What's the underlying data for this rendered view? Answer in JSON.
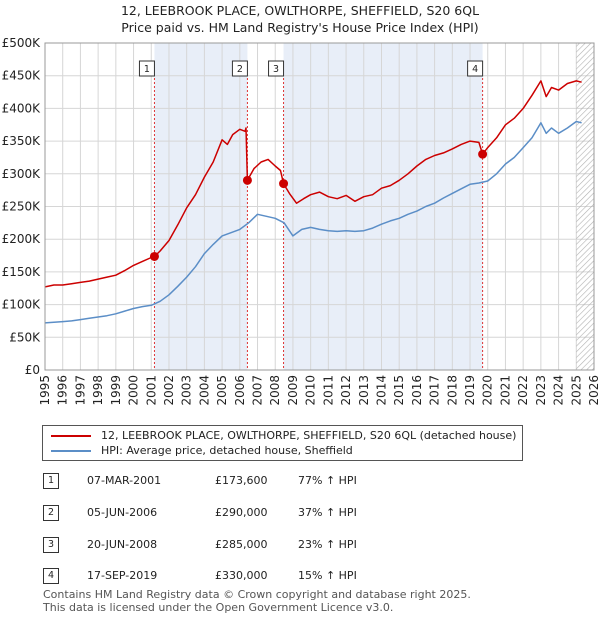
{
  "title_line1": "12, LEEBROOK PLACE, OWLTHORPE, SHEFFIELD, S20 6QL",
  "title_line2": "Price paid vs. HM Land Registry's House Price Index (HPI)",
  "colors": {
    "price_line": "#cc0000",
    "hpi_line": "#5b8ec7",
    "shade": "#e8eef8",
    "grid": "#d6d6d6",
    "marker_dash": "#dd3333",
    "hatch": "#b0b0b0"
  },
  "chart_data": {
    "type": "line",
    "title": "12, LEEBROOK PLACE, OWLTHORPE, SHEFFIELD, S20 6QL — Price paid vs. HM Land Registry's House Price Index (HPI)",
    "xlim": [
      1995,
      2026
    ],
    "ylim": [
      0,
      500000
    ],
    "y_ticks": [
      0,
      50000,
      100000,
      150000,
      200000,
      250000,
      300000,
      350000,
      400000,
      450000,
      500000
    ],
    "y_tick_labels": [
      "£0",
      "£50K",
      "£100K",
      "£150K",
      "£200K",
      "£250K",
      "£300K",
      "£350K",
      "£400K",
      "£450K",
      "£500K"
    ],
    "x_ticks": [
      1995,
      1996,
      1997,
      1998,
      1999,
      2000,
      2001,
      2002,
      2003,
      2004,
      2005,
      2006,
      2007,
      2008,
      2009,
      2010,
      2011,
      2012,
      2013,
      2014,
      2015,
      2016,
      2017,
      2018,
      2019,
      2020,
      2021,
      2022,
      2023,
      2024,
      2025,
      2026
    ],
    "x_tick_labels": [
      "1995",
      "1996",
      "1997",
      "1998",
      "1999",
      "2000",
      "2001",
      "2002",
      "2003",
      "2004",
      "2005",
      "2006",
      "2007",
      "2008",
      "2009",
      "2010",
      "2011",
      "2012",
      "2013",
      "2014",
      "2015",
      "2016",
      "2017",
      "2018",
      "2019",
      "2020",
      "2021",
      "2022",
      "2023",
      "2024",
      "2025",
      "2026"
    ],
    "grid": true,
    "shaded_spans": [
      [
        2001.18,
        2006.43
      ],
      [
        2008.47,
        2019.71
      ]
    ],
    "hatched_from": 2025.0,
    "series": [
      {
        "name": "12, LEEBROOK PLACE, OWLTHORPE, SHEFFIELD, S20 6QL (detached house)",
        "color": "#cc0000",
        "x": [
          1995.0,
          1995.5,
          1996.0,
          1996.5,
          1997.0,
          1997.5,
          1998.0,
          1998.5,
          1999.0,
          1999.5,
          2000.0,
          2000.5,
          2001.0,
          2001.18,
          2001.5,
          2002.0,
          2002.5,
          2003.0,
          2003.5,
          2004.0,
          2004.5,
          2005.0,
          2005.3,
          2005.6,
          2006.0,
          2006.3,
          2006.35,
          2006.43,
          2006.8,
          2007.2,
          2007.6,
          2008.0,
          2008.3,
          2008.47,
          2008.8,
          2009.2,
          2009.6,
          2010.0,
          2010.5,
          2011.0,
          2011.5,
          2012.0,
          2012.5,
          2013.0,
          2013.5,
          2014.0,
          2014.5,
          2015.0,
          2015.5,
          2016.0,
          2016.5,
          2017.0,
          2017.5,
          2018.0,
          2018.5,
          2019.0,
          2019.5,
          2019.71,
          2020.0,
          2020.5,
          2021.0,
          2021.5,
          2022.0,
          2022.5,
          2023.0,
          2023.3,
          2023.6,
          2024.0,
          2024.5,
          2025.0,
          2025.3
        ],
        "values": [
          127000,
          130000,
          130000,
          132000,
          134000,
          136000,
          139000,
          142000,
          145000,
          152000,
          160000,
          166000,
          172000,
          173600,
          182000,
          198000,
          222000,
          248000,
          268000,
          295000,
          318000,
          352000,
          345000,
          360000,
          368000,
          365000,
          370000,
          290000,
          308000,
          318000,
          322000,
          312000,
          305000,
          285000,
          270000,
          255000,
          262000,
          268000,
          272000,
          265000,
          262000,
          267000,
          258000,
          265000,
          268000,
          278000,
          282000,
          290000,
          300000,
          312000,
          322000,
          328000,
          332000,
          338000,
          345000,
          350000,
          348000,
          330000,
          340000,
          355000,
          375000,
          385000,
          400000,
          420000,
          442000,
          418000,
          432000,
          428000,
          438000,
          442000,
          440000
        ]
      },
      {
        "name": "HPI: Average price, detached house, Sheffield",
        "color": "#5b8ec7",
        "x": [
          1995.0,
          1995.5,
          1996.0,
          1996.5,
          1997.0,
          1997.5,
          1998.0,
          1998.5,
          1999.0,
          1999.5,
          2000.0,
          2000.5,
          2001.0,
          2001.5,
          2002.0,
          2002.5,
          2003.0,
          2003.5,
          2004.0,
          2004.5,
          2005.0,
          2005.5,
          2006.0,
          2006.5,
          2007.0,
          2007.5,
          2008.0,
          2008.5,
          2009.0,
          2009.5,
          2010.0,
          2010.5,
          2011.0,
          2011.5,
          2012.0,
          2012.5,
          2013.0,
          2013.5,
          2014.0,
          2014.5,
          2015.0,
          2015.5,
          2016.0,
          2016.5,
          2017.0,
          2017.5,
          2018.0,
          2018.5,
          2019.0,
          2019.5,
          2020.0,
          2020.5,
          2021.0,
          2021.5,
          2022.0,
          2022.5,
          2023.0,
          2023.3,
          2023.6,
          2024.0,
          2024.5,
          2025.0,
          2025.3
        ],
        "values": [
          72000,
          73000,
          74000,
          75000,
          77000,
          79000,
          81000,
          83000,
          86000,
          90000,
          94000,
          97000,
          99000,
          105000,
          115000,
          128000,
          142000,
          158000,
          178000,
          192000,
          205000,
          210000,
          215000,
          225000,
          238000,
          235000,
          232000,
          225000,
          205000,
          215000,
          218000,
          215000,
          213000,
          212000,
          213000,
          212000,
          213000,
          217000,
          223000,
          228000,
          232000,
          238000,
          243000,
          250000,
          255000,
          263000,
          270000,
          277000,
          284000,
          286000,
          289000,
          300000,
          315000,
          325000,
          340000,
          355000,
          378000,
          362000,
          370000,
          362000,
          370000,
          380000,
          378000
        ]
      }
    ],
    "sale_markers": [
      {
        "label": "1",
        "x": 2001.18,
        "value": 173600
      },
      {
        "label": "2",
        "x": 2006.43,
        "value": 290000
      },
      {
        "label": "3",
        "x": 2008.47,
        "value": 285000
      },
      {
        "label": "4",
        "x": 2019.71,
        "value": 330000
      }
    ]
  },
  "legend": {
    "price_label": "12, LEEBROOK PLACE, OWLTHORPE, SHEFFIELD, S20 6QL (detached house)",
    "hpi_label": "HPI: Average price, detached house, Sheffield"
  },
  "sales": [
    {
      "num": "1",
      "date": "07-MAR-2001",
      "price": "£173,600",
      "hpi": "77% ↑ HPI"
    },
    {
      "num": "2",
      "date": "05-JUN-2006",
      "price": "£290,000",
      "hpi": "37% ↑ HPI"
    },
    {
      "num": "3",
      "date": "20-JUN-2008",
      "price": "£285,000",
      "hpi": "23% ↑ HPI"
    },
    {
      "num": "4",
      "date": "17-SEP-2019",
      "price": "£330,000",
      "hpi": "15% ↑ HPI"
    }
  ],
  "footer": {
    "line1": "Contains HM Land Registry data © Crown copyright and database right 2025.",
    "line2": "This data is licensed under the Open Government Licence v3.0."
  }
}
